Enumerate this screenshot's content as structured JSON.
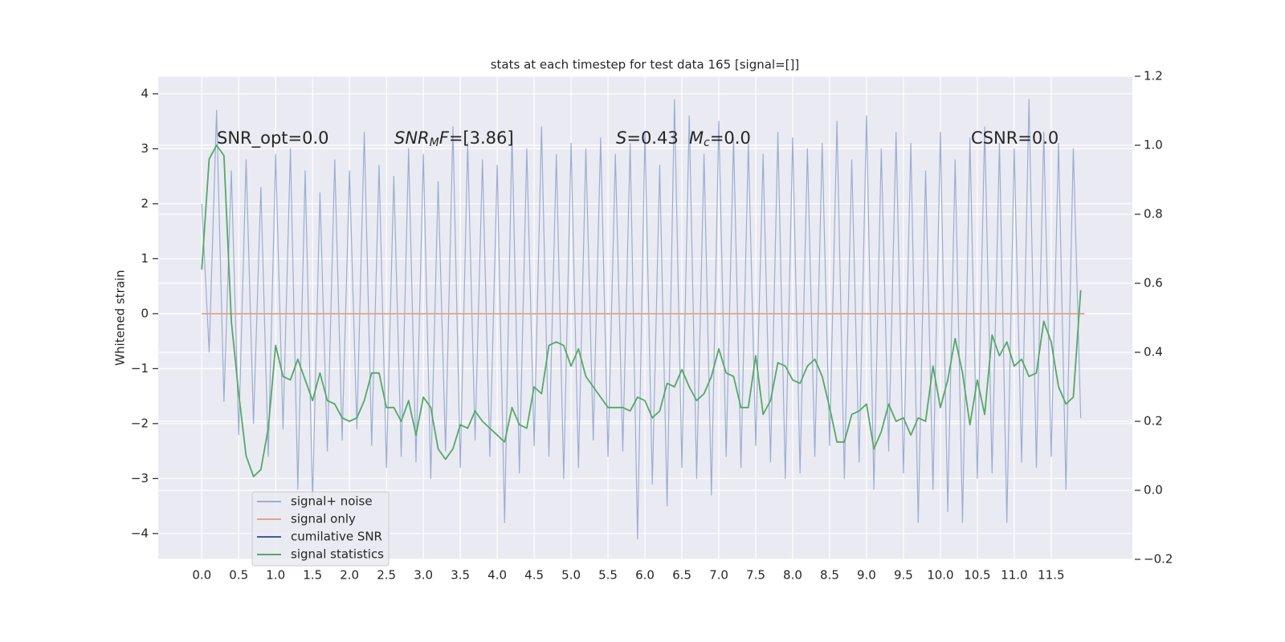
{
  "chart_data": {
    "type": "line",
    "title": "stats at each timestep for test data 165 [signal=[]]",
    "ylabel": "Whitened strain",
    "grid": true,
    "legend": "lower left",
    "xlim": [
      -0.59,
      12.6
    ],
    "ylim": [
      -4.47,
      4.32
    ],
    "y2lim": [
      -0.2,
      1.2
    ],
    "xticks": [
      {
        "value": 0,
        "label": "0.0"
      },
      0.5,
      {
        "value": 1,
        "label": "1.0"
      },
      1.5,
      {
        "value": 2,
        "label": "2.0"
      },
      2.5,
      {
        "value": 3,
        "label": "3.0"
      },
      3.5,
      {
        "value": 4,
        "label": "4.0"
      },
      4.5,
      {
        "value": 5,
        "label": "5.0"
      },
      5.5,
      {
        "value": 6,
        "label": "6.0"
      },
      6.5,
      {
        "value": 7,
        "label": "7.0"
      },
      7.5,
      {
        "value": 8,
        "label": "8.0"
      },
      8.5,
      {
        "value": 9,
        "label": "9.0"
      },
      9.5,
      {
        "value": 10,
        "label": "10.0"
      },
      10.5,
      {
        "value": 11,
        "label": "11.0"
      },
      11.5
    ],
    "yticks": [
      {
        "value": -4,
        "label": "−4"
      },
      {
        "value": -3,
        "label": "−3"
      },
      {
        "value": -2,
        "label": "−2"
      },
      {
        "value": -1,
        "label": "−1"
      },
      0,
      1,
      2,
      3,
      4
    ],
    "y2ticks": [
      {
        "value": -0.2,
        "label": "−0.2"
      },
      {
        "value": 0,
        "label": "0.0"
      },
      0.2,
      0.4,
      0.6,
      0.8,
      {
        "value": 1,
        "label": "1.0"
      },
      1.2
    ],
    "annotations": [
      [
        {
          "text": "SNR_opt=0.0",
          "style": "normal"
        }
      ],
      [
        {
          "text": "SNR",
          "style": "italic"
        },
        {
          "text": "M",
          "style": "sub"
        },
        {
          "text": "F",
          "style": "italic"
        },
        {
          "text": "=[3.86]",
          "style": "normal"
        }
      ],
      [
        {
          "text": "S",
          "style": "italic"
        },
        {
          "text": "=0.43",
          "style": "normal"
        }
      ],
      [
        {
          "text": "M",
          "style": "italic"
        },
        {
          "text": "c",
          "style": "sub"
        },
        {
          "text": "=0.0",
          "style": "normal"
        }
      ],
      [
        {
          "text": "CSNR=0.0",
          "style": "normal"
        }
      ]
    ],
    "x": [
      0,
      0.1,
      0.2,
      0.3,
      0.4,
      0.5,
      0.6,
      0.7,
      0.8,
      0.9,
      1.0,
      1.1,
      1.2,
      1.3,
      1.4,
      1.5,
      1.6,
      1.7,
      1.8,
      1.9,
      2.0,
      2.1,
      2.2,
      2.3,
      2.4,
      2.5,
      2.6,
      2.7,
      2.8,
      2.9,
      3.0,
      3.1,
      3.2,
      3.3,
      3.4,
      3.5,
      3.6,
      3.7,
      3.8,
      3.9,
      4.0,
      4.1,
      4.2,
      4.3,
      4.4,
      4.5,
      4.6,
      4.7,
      4.8,
      4.9,
      5.0,
      5.1,
      5.2,
      5.3,
      5.4,
      5.5,
      5.6,
      5.7,
      5.8,
      5.9,
      6.0,
      6.1,
      6.2,
      6.3,
      6.4,
      6.5,
      6.6,
      6.7,
      6.8,
      6.9,
      7.0,
      7.1,
      7.2,
      7.3,
      7.4,
      7.5,
      7.6,
      7.7,
      7.8,
      7.9,
      8.0,
      8.1,
      8.2,
      8.3,
      8.4,
      8.5,
      8.6,
      8.7,
      8.8,
      8.9,
      9.0,
      9.1,
      9.2,
      9.3,
      9.4,
      9.5,
      9.6,
      9.7,
      9.8,
      9.9,
      10.0,
      10.1,
      10.2,
      10.3,
      10.4,
      10.5,
      10.6,
      10.7,
      10.8,
      10.9,
      11.0,
      11.1,
      11.2,
      11.3,
      11.4,
      11.5,
      11.6,
      11.7,
      11.8,
      11.9
    ],
    "series": [
      {
        "name": "signal+ noise",
        "color": "#9aaed2",
        "axis": "y",
        "values": [
          2.0,
          -0.7,
          3.7,
          -1.6,
          2.6,
          -2.2,
          2.8,
          -2.0,
          2.3,
          -2.6,
          2.9,
          -2.1,
          3.0,
          -3.2,
          2.6,
          -3.4,
          2.2,
          -2.5,
          2.8,
          -2.3,
          2.6,
          -2.1,
          3.3,
          -2.4,
          2.7,
          -2.8,
          2.5,
          -2.6,
          3.0,
          -2.7,
          2.9,
          -3.0,
          2.4,
          -2.5,
          3.4,
          -2.8,
          3.1,
          -2.3,
          2.8,
          -2.6,
          2.7,
          -3.8,
          3.3,
          -2.9,
          3.0,
          -2.4,
          3.4,
          -2.6,
          2.9,
          -3.0,
          3.1,
          -2.8,
          3.0,
          -2.3,
          3.2,
          -2.6,
          2.9,
          -2.5,
          3.1,
          -4.1,
          3.3,
          -3.1,
          2.7,
          -3.5,
          3.9,
          -2.8,
          3.6,
          -3.0,
          2.9,
          -3.3,
          3.5,
          -2.6,
          3.2,
          -2.8,
          3.1,
          -2.4,
          2.9,
          -2.7,
          3.3,
          -3.0,
          3.2,
          -2.9,
          3.0,
          -2.6,
          3.1,
          -2.4,
          3.5,
          -3.0,
          2.8,
          -2.7,
          3.6,
          -3.2,
          3.0,
          -2.5,
          3.3,
          -2.9,
          3.1,
          -3.8,
          2.6,
          -3.2,
          3.3,
          -3.6,
          2.8,
          -3.8,
          3.2,
          -3.0,
          3.4,
          -2.9,
          3.1,
          -3.8,
          3.0,
          -2.7,
          3.9,
          -2.8,
          3.3,
          -2.6,
          3.1,
          -3.2,
          3.0,
          -1.9
        ]
      },
      {
        "name": "signal only",
        "color": "#e0a58a",
        "axis": "y",
        "x": [
          0,
          11.95
        ],
        "values": [
          0,
          0
        ]
      },
      {
        "name": "cumilative SNR",
        "color": "#3a5da0",
        "axis": "y2",
        "x": [],
        "values": []
      },
      {
        "name": "signal statistics",
        "color": "#55a868",
        "axis": "y2",
        "values": [
          0.64,
          0.96,
          1.0,
          0.97,
          0.49,
          0.28,
          0.1,
          0.04,
          0.06,
          0.18,
          0.42,
          0.33,
          0.32,
          0.38,
          0.32,
          0.26,
          0.34,
          0.26,
          0.25,
          0.21,
          0.2,
          0.21,
          0.26,
          0.34,
          0.34,
          0.24,
          0.24,
          0.2,
          0.26,
          0.16,
          0.27,
          0.24,
          0.12,
          0.09,
          0.12,
          0.19,
          0.18,
          0.23,
          0.2,
          0.18,
          0.16,
          0.14,
          0.24,
          0.19,
          0.18,
          0.3,
          0.28,
          0.42,
          0.43,
          0.42,
          0.36,
          0.41,
          0.33,
          0.3,
          0.27,
          0.24,
          0.24,
          0.24,
          0.23,
          0.27,
          0.26,
          0.21,
          0.23,
          0.31,
          0.3,
          0.35,
          0.3,
          0.26,
          0.28,
          0.33,
          0.41,
          0.34,
          0.33,
          0.24,
          0.24,
          0.39,
          0.22,
          0.26,
          0.37,
          0.36,
          0.32,
          0.31,
          0.36,
          0.38,
          0.33,
          0.24,
          0.14,
          0.14,
          0.22,
          0.23,
          0.25,
          0.12,
          0.17,
          0.25,
          0.2,
          0.21,
          0.16,
          0.21,
          0.2,
          0.36,
          0.24,
          0.32,
          0.44,
          0.34,
          0.19,
          0.32,
          0.22,
          0.45,
          0.39,
          0.43,
          0.36,
          0.38,
          0.33,
          0.34,
          0.49,
          0.43,
          0.3,
          0.25,
          0.27,
          0.58
        ]
      }
    ]
  }
}
